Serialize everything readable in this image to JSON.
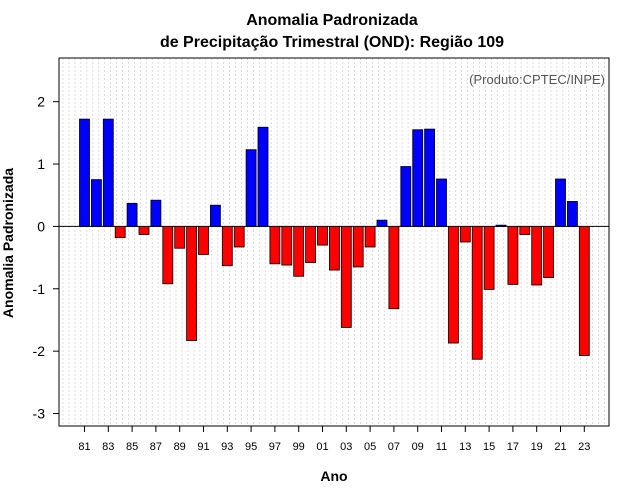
{
  "chart_data": {
    "type": "bar",
    "title": "Anomalia Padronizada",
    "subtitle": "de Precipitação Trimestral (OND): Região 109",
    "credit": "(Produto:CPTEC/INPE)",
    "xlabel": "Ano",
    "ylabel": "Anomalia Padronizada",
    "ylim": [
      -3.2,
      2.7
    ],
    "yticks": [
      -3,
      -2,
      -1,
      0,
      1,
      2
    ],
    "ytick_labels": [
      "-3",
      "-2",
      "-1",
      "0",
      "1",
      "2"
    ],
    "grid": true,
    "categories": [
      "81",
      "82",
      "83",
      "84",
      "85",
      "86",
      "87",
      "88",
      "89",
      "90",
      "91",
      "92",
      "93",
      "94",
      "95",
      "96",
      "97",
      "98",
      "99",
      "00",
      "01",
      "02",
      "03",
      "04",
      "05",
      "06",
      "07",
      "08",
      "09",
      "10",
      "11",
      "12",
      "13",
      "14",
      "15",
      "16",
      "17",
      "18",
      "19",
      "20",
      "21",
      "22",
      "23"
    ],
    "xtick_labels": [
      "81",
      "83",
      "85",
      "87",
      "89",
      "91",
      "93",
      "95",
      "97",
      "99",
      "01",
      "03",
      "05",
      "07",
      "09",
      "11",
      "13",
      "15",
      "17",
      "19",
      "21",
      "23"
    ],
    "values": [
      1.72,
      0.75,
      1.72,
      -0.18,
      0.37,
      -0.13,
      0.42,
      -0.92,
      -0.35,
      -1.83,
      -0.45,
      0.34,
      -0.63,
      -0.33,
      1.23,
      1.59,
      -0.6,
      -0.62,
      -0.8,
      -0.58,
      -0.3,
      -0.7,
      -1.62,
      -0.65,
      -0.33,
      0.1,
      -1.32,
      0.96,
      1.55,
      1.56,
      0.76,
      -1.87,
      -0.25,
      -2.13,
      -1.01,
      0.02,
      -0.93,
      -0.13,
      -0.94,
      -0.82,
      0.76,
      0.4,
      -2.07
    ],
    "positive_color": "#0000ff",
    "negative_color": "#ff0000"
  }
}
